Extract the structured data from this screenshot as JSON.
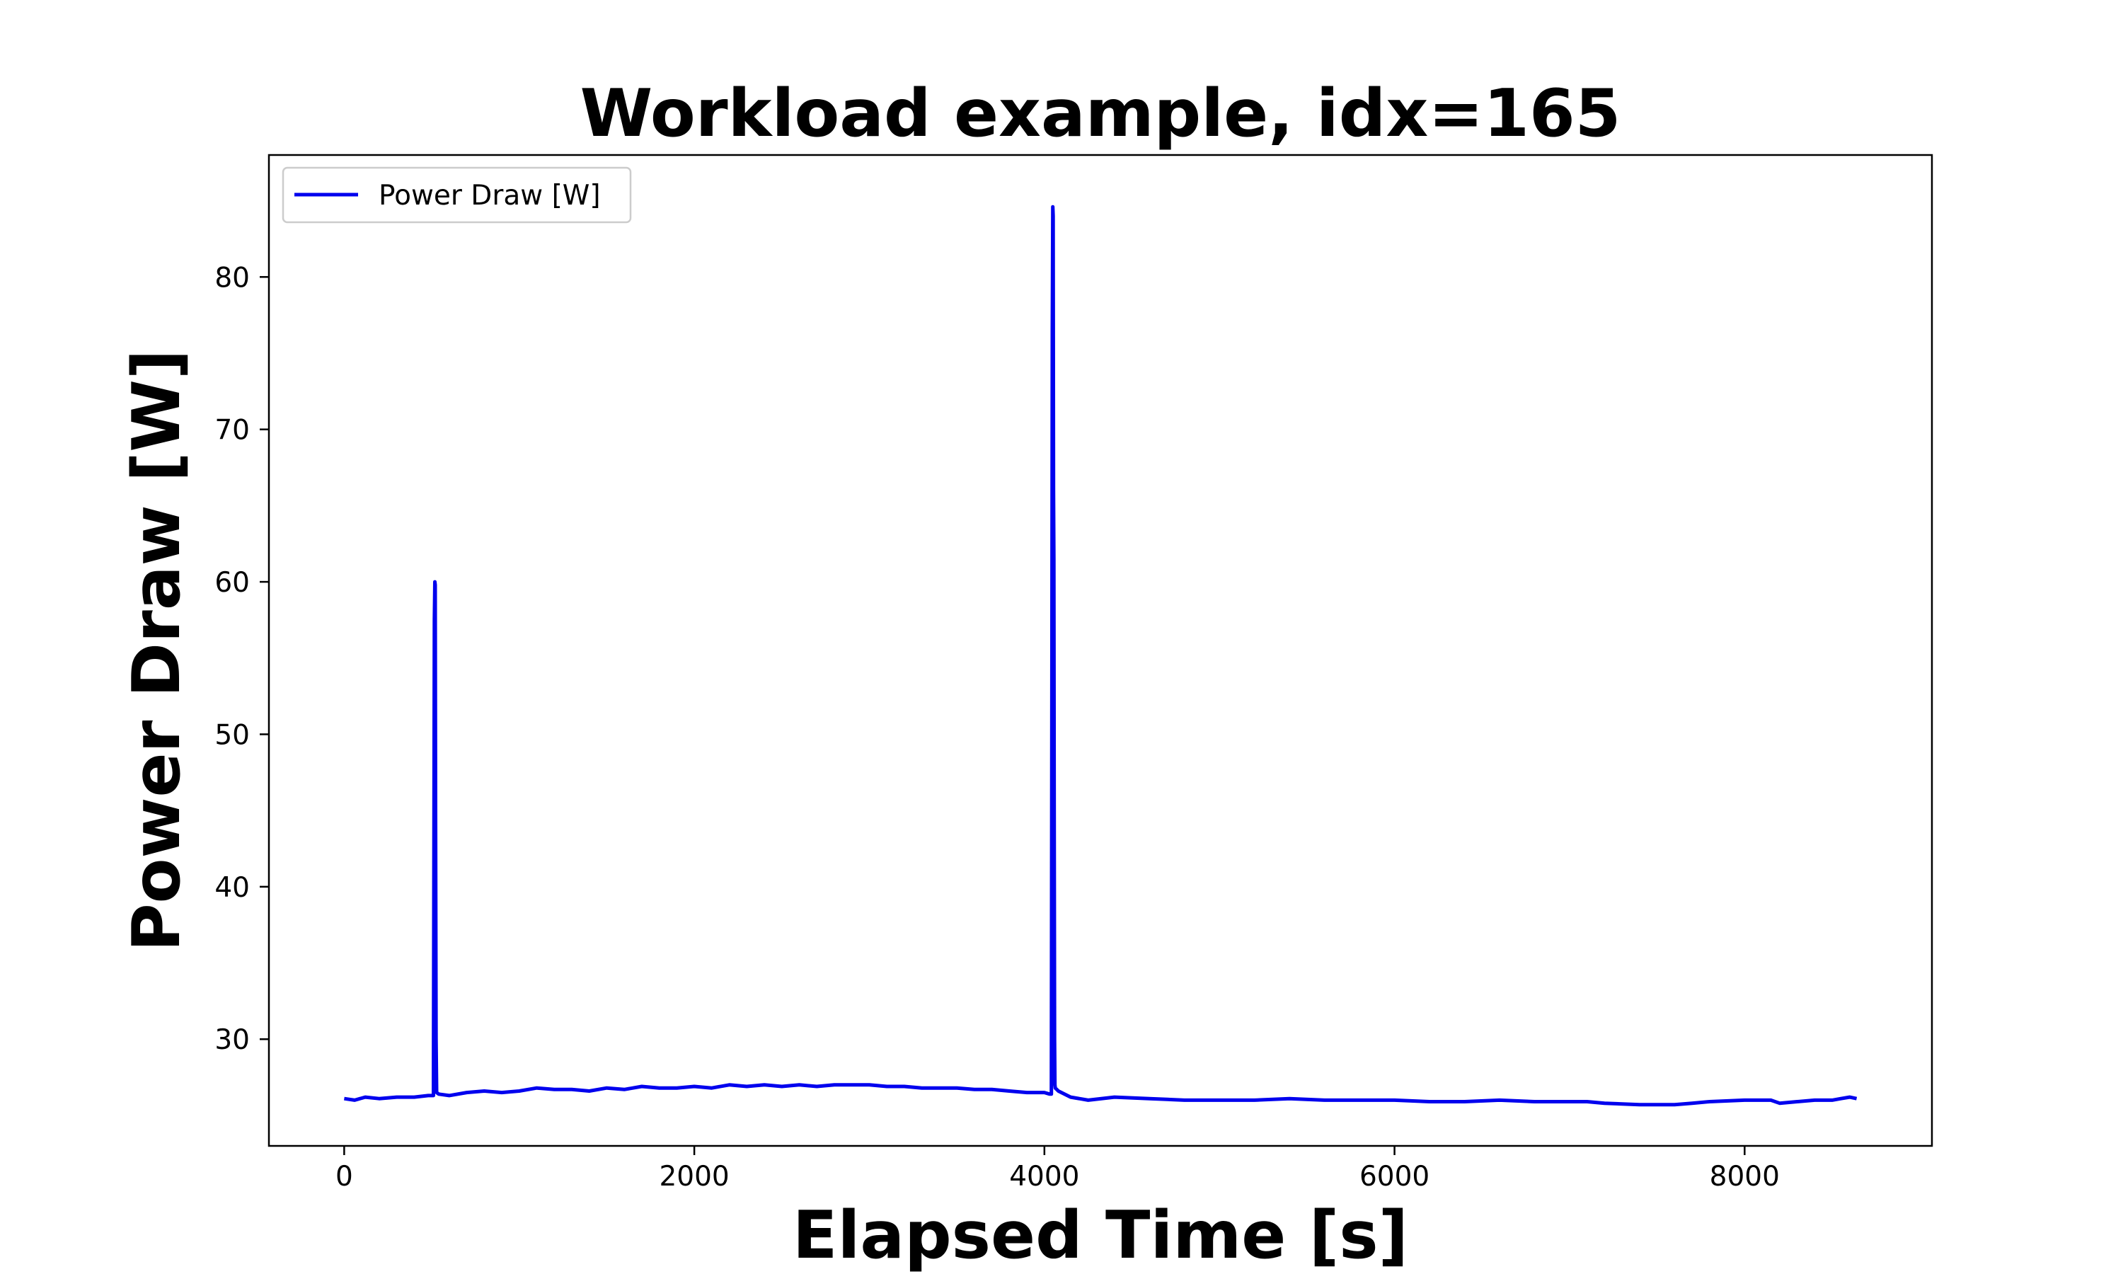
{
  "chart_data": {
    "type": "line",
    "title": "Workload example, idx=165",
    "xlabel": "Elapsed Time [s]",
    "ylabel": "Power Draw [W]",
    "xlim": [
      -430,
      9070
    ],
    "ylim": [
      23.0,
      88.0
    ],
    "xticks": [
      0,
      2000,
      4000,
      6000,
      8000
    ],
    "xtick_labels": [
      "0",
      "2000",
      "4000",
      "6000",
      "8000"
    ],
    "yticks": [
      30,
      40,
      50,
      60,
      70,
      80
    ],
    "ytick_labels": [
      "30",
      "40",
      "50",
      "60",
      "70",
      "80"
    ],
    "grid": false,
    "legend_position": "upper left",
    "series": [
      {
        "name": "Power Draw [W]",
        "color": "#0000ee",
        "x": [
          0,
          60,
          120,
          200,
          300,
          400,
          480,
          510,
          515,
          518,
          520,
          522,
          525,
          528,
          540,
          600,
          700,
          800,
          900,
          1000,
          1100,
          1200,
          1300,
          1400,
          1500,
          1600,
          1700,
          1800,
          1900,
          2000,
          2100,
          2200,
          2300,
          2400,
          2500,
          2600,
          2700,
          2800,
          2900,
          3000,
          3100,
          3200,
          3300,
          3400,
          3500,
          3600,
          3700,
          3800,
          3900,
          4000,
          4030,
          4040,
          4045,
          4048,
          4050,
          4052,
          4054,
          4056,
          4058,
          4060,
          4062,
          4080,
          4150,
          4250,
          4400,
          4600,
          4800,
          5000,
          5200,
          5400,
          5600,
          5800,
          6000,
          6200,
          6400,
          6600,
          6800,
          7000,
          7100,
          7200,
          7400,
          7600,
          7700,
          7800,
          8000,
          8150,
          8200,
          8300,
          8400,
          8500,
          8550,
          8600,
          8640
        ],
        "y": [
          26.1,
          26.0,
          26.2,
          26.1,
          26.2,
          26.2,
          26.3,
          26.3,
          57.5,
          60.0,
          59.8,
          45.0,
          30.0,
          26.5,
          26.4,
          26.3,
          26.5,
          26.6,
          26.5,
          26.6,
          26.8,
          26.7,
          26.7,
          26.6,
          26.8,
          26.7,
          26.9,
          26.8,
          26.8,
          26.9,
          26.8,
          27.0,
          26.9,
          27.0,
          26.9,
          27.0,
          26.9,
          27.0,
          27.0,
          27.0,
          26.9,
          26.9,
          26.8,
          26.8,
          26.8,
          26.7,
          26.7,
          26.6,
          26.5,
          26.5,
          26.4,
          26.4,
          76.5,
          84.6,
          84.0,
          66.0,
          61.5,
          44.0,
          30.0,
          27.0,
          26.8,
          26.6,
          26.2,
          26.0,
          26.2,
          26.1,
          26.0,
          26.0,
          26.0,
          26.1,
          26.0,
          26.0,
          26.0,
          25.9,
          25.9,
          26.0,
          25.9,
          25.9,
          25.9,
          25.8,
          25.7,
          25.7,
          25.8,
          25.9,
          26.0,
          26.0,
          25.8,
          25.9,
          26.0,
          26.0,
          26.1,
          26.2,
          26.1
        ]
      }
    ]
  }
}
